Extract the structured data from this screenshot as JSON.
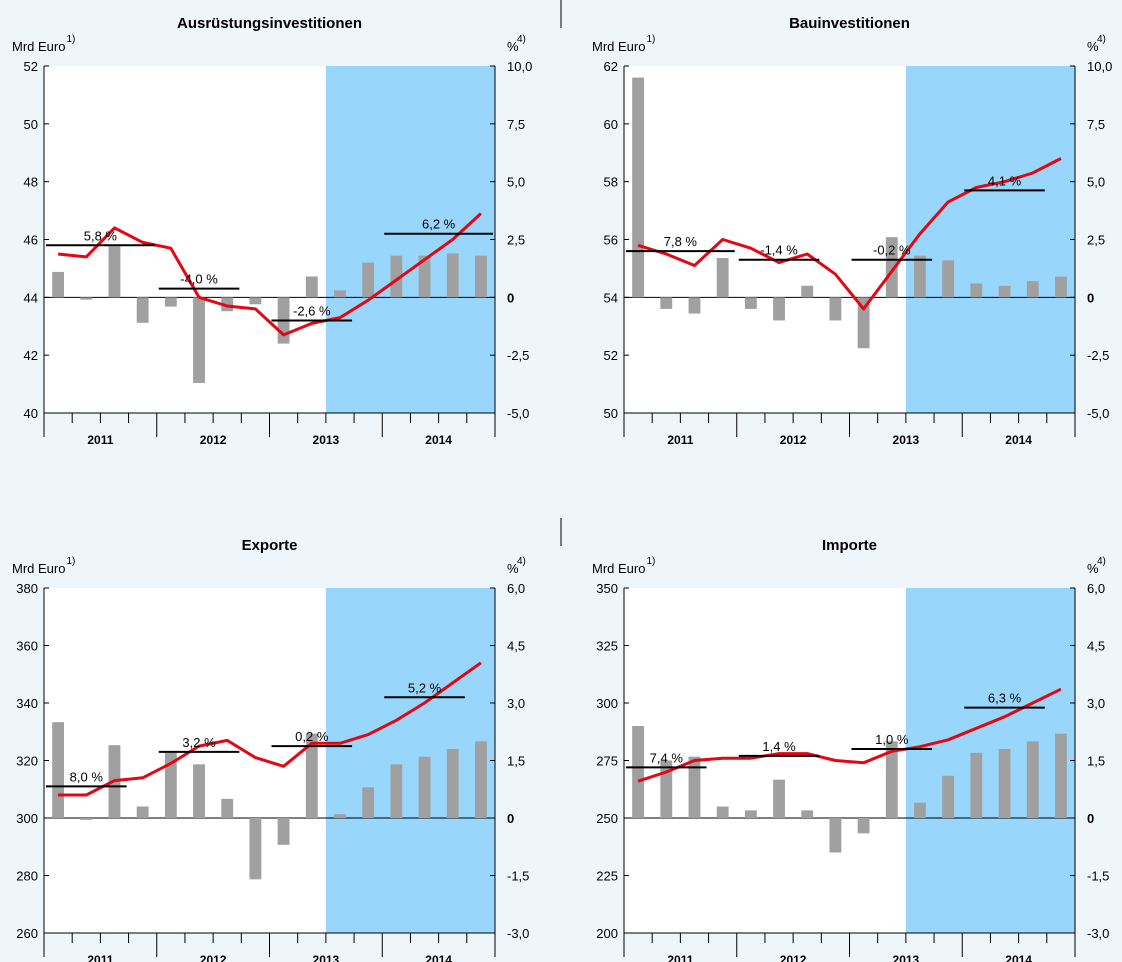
{
  "colors": {
    "background": "#eef6fa",
    "forecast_shade": "#99d6fc",
    "bars": "#a0a0a0",
    "line": "#e30613",
    "avg": "#000000"
  },
  "chart_data": [
    {
      "type": "bar",
      "title": "Ausrüstungsinvestitionen",
      "ylabel_left": "Mrd Euro",
      "ylabel_left_sup": "1)",
      "ylabel_right": "%",
      "ylabel_right_sup": "4)",
      "ylim_left": [
        40,
        52
      ],
      "yticks_left": [
        "40",
        "42",
        "44",
        "46",
        "48",
        "50",
        "52"
      ],
      "ylim_right": [
        -5,
        10
      ],
      "yticks_right": [
        "-5,0",
        "-2,5",
        "0",
        "2,5",
        "5,0",
        "7,5",
        "10,0"
      ],
      "years": [
        "2011",
        "2012",
        "2013",
        "2014"
      ],
      "forecast_from_quarter": 10,
      "line_levels": [
        45.5,
        45.4,
        46.4,
        45.9,
        45.7,
        44.0,
        43.7,
        43.6,
        42.7,
        43.1,
        43.3,
        43.9,
        44.6,
        45.3,
        46.0,
        46.9
      ],
      "bar_rates": [
        1.1,
        -0.1,
        2.2,
        -1.1,
        -0.4,
        -3.7,
        -0.6,
        -0.3,
        -2.0,
        0.9,
        0.3,
        1.5,
        1.8,
        1.8,
        1.9,
        1.8
      ],
      "averages": [
        {
          "label": "5,8 %",
          "value": 45.8,
          "from": 0,
          "to": 4
        },
        {
          "label": "-4,0 %",
          "value": 44.3,
          "from": 4,
          "to": 7
        },
        {
          "label": "-2,6 %",
          "value": 43.2,
          "from": 8,
          "to": 11
        },
        {
          "label": "6,2 %",
          "value": 46.2,
          "from": 12,
          "to": 16
        }
      ]
    },
    {
      "type": "bar",
      "title": "Bauinvestitionen",
      "ylabel_left": "Mrd Euro",
      "ylabel_left_sup": "1)",
      "ylabel_right": "%",
      "ylabel_right_sup": "4)",
      "ylim_left": [
        50,
        62
      ],
      "yticks_left": [
        "50",
        "52",
        "54",
        "56",
        "58",
        "60",
        "62"
      ],
      "ylim_right": [
        -5,
        10
      ],
      "yticks_right": [
        "-5,0",
        "-2,5",
        "0",
        "2,5",
        "5,0",
        "7,5",
        "10,0"
      ],
      "years": [
        "2011",
        "2012",
        "2013",
        "2014"
      ],
      "forecast_from_quarter": 10,
      "line_levels": [
        55.8,
        55.5,
        55.1,
        56.0,
        55.7,
        55.2,
        55.5,
        54.8,
        53.6,
        54.9,
        56.2,
        57.3,
        57.8,
        58.0,
        58.3,
        58.8
      ],
      "bar_rates": [
        9.5,
        -0.5,
        -0.7,
        1.7,
        -0.5,
        -1.0,
        0.5,
        -1.0,
        -2.2,
        2.6,
        1.8,
        1.6,
        0.6,
        0.5,
        0.7,
        0.9
      ],
      "averages": [
        {
          "label": "7,8 %",
          "value": 55.6,
          "from": 0,
          "to": 4
        },
        {
          "label": "-1,4 %",
          "value": 55.3,
          "from": 4,
          "to": 7
        },
        {
          "label": "-0,2 %",
          "value": 55.3,
          "from": 8,
          "to": 11
        },
        {
          "label": "4,1 %",
          "value": 57.7,
          "from": 12,
          "to": 15
        }
      ]
    },
    {
      "type": "bar",
      "title": "Exporte",
      "ylabel_left": "Mrd Euro",
      "ylabel_left_sup": "1)",
      "ylabel_right": "%",
      "ylabel_right_sup": "4)",
      "ylim_left": [
        260,
        380
      ],
      "yticks_left": [
        "260",
        "280",
        "300",
        "320",
        "340",
        "360",
        "380"
      ],
      "ylim_right": [
        -3,
        6
      ],
      "yticks_right": [
        "-3,0",
        "-1,5",
        "0",
        "1,5",
        "3,0",
        "4,5",
        "6,0"
      ],
      "years": [
        "2011",
        "2012",
        "2013",
        "2014"
      ],
      "forecast_from_quarter": 10,
      "line_levels": [
        308,
        308,
        313,
        314,
        319,
        325,
        327,
        321,
        318,
        326,
        326,
        329,
        334,
        340,
        347,
        354
      ],
      "bar_rates": [
        2.5,
        -0.05,
        1.9,
        0.3,
        1.7,
        1.4,
        0.5,
        -1.6,
        -0.7,
        2.2,
        0.1,
        0.8,
        1.4,
        1.6,
        1.8,
        2.0
      ],
      "averages": [
        {
          "label": "8,0 %",
          "value": 311,
          "from": 0,
          "to": 3
        },
        {
          "label": "3,2 %",
          "value": 323,
          "from": 4,
          "to": 7
        },
        {
          "label": "0,2 %",
          "value": 325,
          "from": 8,
          "to": 11
        },
        {
          "label": "5,2 %",
          "value": 342,
          "from": 12,
          "to": 15
        }
      ]
    },
    {
      "type": "bar",
      "title": "Importe",
      "ylabel_left": "Mrd Euro",
      "ylabel_left_sup": "1)",
      "ylabel_right": "%",
      "ylabel_right_sup": "4)",
      "ylim_left": [
        200,
        350
      ],
      "yticks_left": [
        "200",
        "225",
        "250",
        "275",
        "300",
        "325",
        "350"
      ],
      "ylim_right": [
        -3,
        6
      ],
      "yticks_right": [
        "-3,0",
        "-1,5",
        "0",
        "1,5",
        "3,0",
        "4,5",
        "6,0"
      ],
      "years": [
        "2011",
        "2012",
        "2013",
        "2014"
      ],
      "forecast_from_quarter": 10,
      "line_levels": [
        266,
        270,
        275,
        276,
        276,
        278,
        278,
        275,
        274,
        279,
        281,
        284,
        289,
        294,
        300,
        306
      ],
      "bar_rates": [
        2.4,
        1.5,
        1.6,
        0.3,
        0.2,
        1.0,
        0.2,
        -0.9,
        -0.4,
        2.0,
        0.4,
        1.1,
        1.7,
        1.8,
        2.0,
        2.2
      ],
      "averages": [
        {
          "label": "7,4 %",
          "value": 272,
          "from": 0,
          "to": 3
        },
        {
          "label": "1,4 %",
          "value": 277,
          "from": 4,
          "to": 7
        },
        {
          "label": "1,0 %",
          "value": 280,
          "from": 8,
          "to": 11
        },
        {
          "label": "6,3 %",
          "value": 298,
          "from": 12,
          "to": 15
        }
      ]
    }
  ]
}
